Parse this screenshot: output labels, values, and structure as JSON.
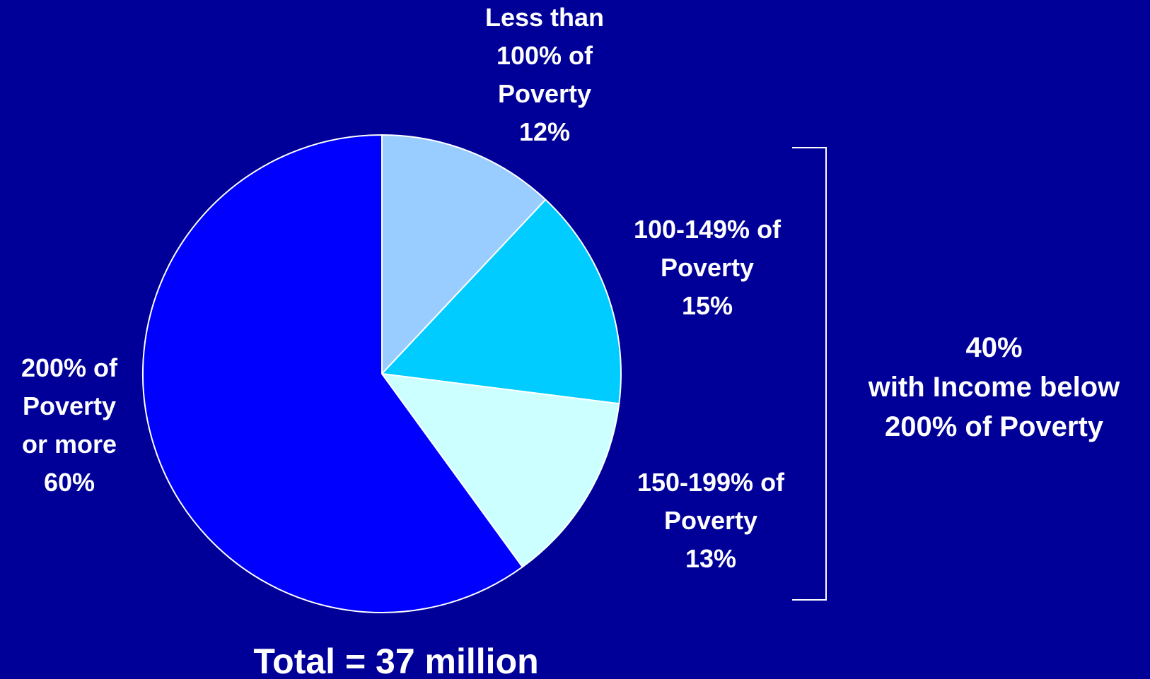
{
  "chart_data": {
    "type": "pie",
    "slices": [
      {
        "label": [
          "Less than",
          "100% of",
          "Poverty"
        ],
        "value_text": "12%",
        "value": 12,
        "color": "#99ccff"
      },
      {
        "label": [
          "100-149% of",
          "Poverty"
        ],
        "value_text": "15%",
        "value": 15,
        "color": "#00ccff"
      },
      {
        "label": [
          "150-199% of",
          "Poverty"
        ],
        "value_text": "13%",
        "value": 13,
        "color": "#ccffff"
      },
      {
        "label": [
          "200% of",
          "Poverty",
          "or more"
        ],
        "value_text": "60%",
        "value": 60,
        "color": "#0000ff"
      }
    ],
    "bracket_note": [
      "40%",
      "with Income below",
      "200% of Poverty"
    ],
    "total": "Total = 37 million",
    "start_angle": "12 o'clock",
    "direction": "clockwise"
  },
  "colors": {
    "background": "#000099",
    "text": "#ffffff",
    "slice_border": "#ffffff"
  }
}
